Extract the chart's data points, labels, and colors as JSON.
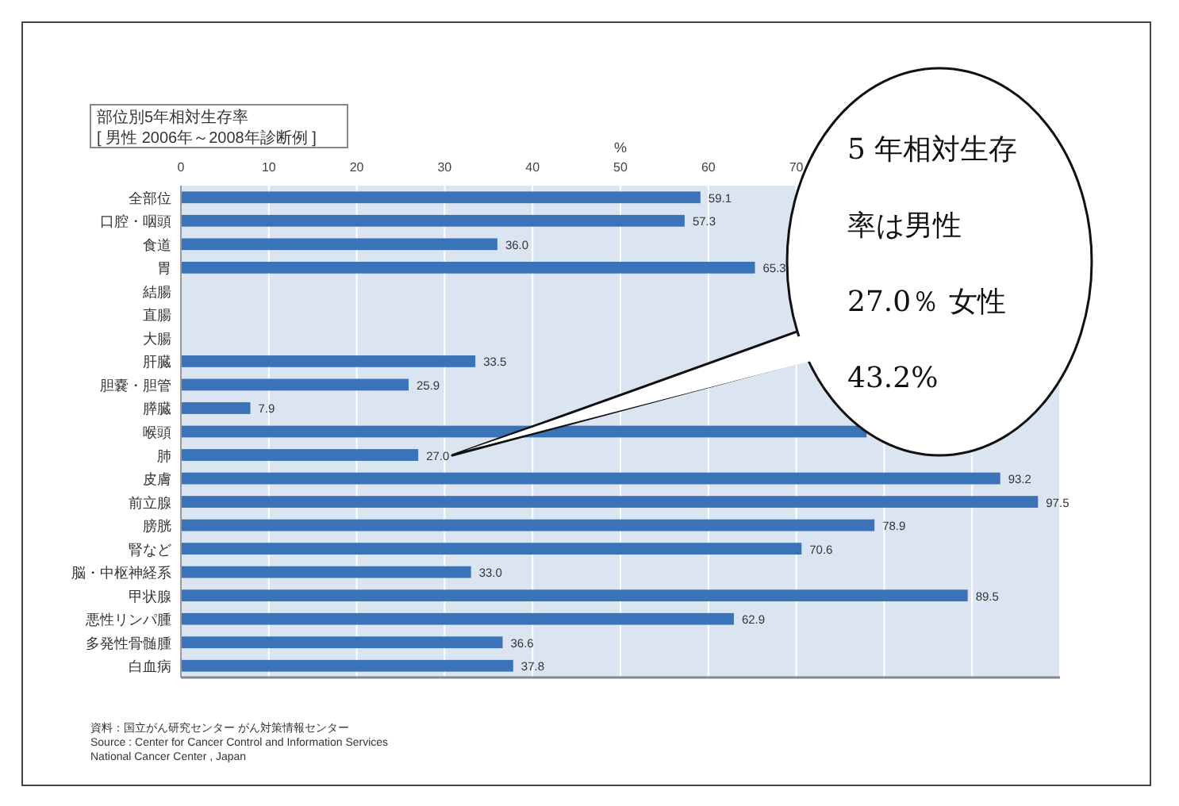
{
  "chart_data": {
    "type": "bar",
    "orientation": "horizontal",
    "title": "部位別5年相対生存率",
    "subtitle": "[ 男性 2006年～2008年診断例 ]",
    "xlabel": "%",
    "categories": [
      "全部位",
      "口腔・咽頭",
      "食道",
      "胃",
      "結腸",
      "直腸",
      "大腸",
      "肝臓",
      "胆嚢・胆管",
      "膵臓",
      "喉頭",
      "肺",
      "皮膚",
      "前立腺",
      "膀胱",
      "腎など",
      "脳・中枢神経系",
      "甲状腺",
      "悪性リンパ腫",
      "多発性骨髄腫",
      "白血病"
    ],
    "values": [
      59.1,
      57.3,
      36.0,
      65.3,
      null,
      null,
      null,
      33.5,
      25.9,
      7.9,
      78,
      27.0,
      93.2,
      97.5,
      78.9,
      70.6,
      33.0,
      89.5,
      62.9,
      36.6,
      37.8
    ],
    "value_labels": [
      "59.1",
      "57.3",
      "36.0",
      "65.3",
      null,
      null,
      null,
      "33.5",
      "25.9",
      "7.9",
      null,
      "27.0",
      "93.2",
      "97.5",
      "78.9",
      "70.6",
      "33.0",
      "89.5",
      "62.9",
      "36.6",
      "37.8"
    ],
    "color": "#3a73b8",
    "xlim": [
      0,
      100
    ],
    "xticks": [
      0,
      10,
      20,
      30,
      40,
      50,
      60,
      70,
      {
        "value": 80,
        "label": null
      },
      {
        "value": 90,
        "label": null
      },
      {
        "value": 100,
        "label": null
      }
    ],
    "grid": "x",
    "annotations": [
      "5 年相対生存率は男性 27.0％ 女性 43.2%",
      "資料：国立がん研究センター がん対策情報センター",
      "Source : Center for Cancer Control and Information Services",
      "National Cancer Center , Japan"
    ]
  }
}
